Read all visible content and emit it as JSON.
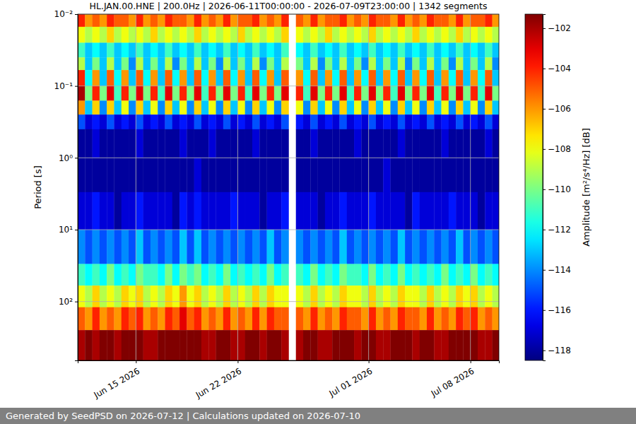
{
  "chart_data": {
    "type": "heatmap",
    "title": "HL.JAN.00.HNE | 200.0Hz | 2026-06-11T00:00:00 - 2026-07-09T23:00:00 | 1342 segments",
    "y_label": "Period [s]",
    "footer": "Generated by SeedPSD on 2026-07-12 | Calculations updated on 2026-07-10",
    "log": "y",
    "grid": true,
    "xlim": [
      "2026-06-11T00:00",
      "2026-07-09T23:00"
    ],
    "xticks": [
      {
        "value": "2026-06-15T00:00",
        "label": "Jun 15 2026"
      },
      {
        "value": "2026-06-22T00:00",
        "label": "Jun 22 2026"
      },
      {
        "value": "2026-07-01T00:00",
        "label": "Jul 01 2026"
      },
      {
        "value": "2026-07-08T00:00",
        "label": "Jul 08 2026"
      }
    ],
    "ylim": [
      0.01,
      660
    ],
    "yticks": [
      {
        "value": 0.01,
        "label": "10⁻²"
      },
      {
        "value": 0.1,
        "label": "10⁻¹"
      },
      {
        "value": 1,
        "label": "10⁰"
      },
      {
        "value": 10,
        "label": "10¹"
      },
      {
        "value": 100,
        "label": "10²"
      }
    ],
    "x": [
      "2026-06-11T00:00",
      "2026-06-11T12:00",
      "2026-06-12T00:00",
      "2026-06-12T12:00",
      "2026-06-13T00:00",
      "2026-06-13T12:00",
      "2026-06-14T00:00",
      "2026-06-14T12:00",
      "2026-06-15T00:00",
      "2026-06-15T12:00",
      "2026-06-16T00:00",
      "2026-06-16T12:00",
      "2026-06-17T00:00",
      "2026-06-17T12:00",
      "2026-06-18T00:00",
      "2026-06-18T12:00",
      "2026-06-19T00:00",
      "2026-06-19T12:00",
      "2026-06-20T00:00",
      "2026-06-20T12:00",
      "2026-06-21T00:00",
      "2026-06-21T12:00",
      "2026-06-22T00:00",
      "2026-06-22T12:00",
      "2026-06-23T00:00",
      "2026-06-23T12:00",
      "2026-06-24T00:00",
      "2026-06-24T12:00",
      "2026-06-25T00:00",
      "2026-06-25T12:00",
      "2026-06-26T00:00",
      "2026-06-26T12:00",
      "2026-06-27T00:00",
      "2026-06-27T12:00",
      "2026-06-28T00:00",
      "2026-06-28T12:00",
      "2026-06-29T00:00",
      "2026-06-29T12:00",
      "2026-06-30T00:00",
      "2026-06-30T12:00",
      "2026-07-01T00:00",
      "2026-07-01T12:00",
      "2026-07-02T00:00",
      "2026-07-02T12:00",
      "2026-07-03T00:00",
      "2026-07-03T12:00",
      "2026-07-04T00:00",
      "2026-07-04T12:00",
      "2026-07-05T00:00",
      "2026-07-05T12:00",
      "2026-07-06T00:00",
      "2026-07-06T12:00",
      "2026-07-07T00:00",
      "2026-07-07T12:00",
      "2026-07-08T00:00",
      "2026-07-08T12:00",
      "2026-07-09T00:00",
      "2026-07-09T12:00"
    ],
    "y": [
      0.01,
      0.015,
      0.025,
      0.04,
      0.06,
      0.1,
      0.16,
      0.25,
      0.4,
      1,
      3,
      10,
      30,
      60,
      120,
      250,
      660
    ],
    "z": [
      [
        -104,
        -106,
        -105,
        -106,
        -104,
        -105,
        -105,
        -106,
        -104,
        -106,
        -105,
        -106,
        -104,
        -105,
        -105,
        -106,
        -104,
        -106,
        -105,
        -106,
        -104,
        -106,
        -105,
        -105,
        -104,
        -106,
        -105,
        -106,
        -104,
        null,
        -105,
        -106,
        -104,
        -106,
        -105,
        -105,
        -104,
        -106,
        -105,
        -106,
        -104,
        -105,
        -105,
        -106,
        -104,
        -106,
        -105,
        -106,
        -104,
        -105,
        -105,
        -106,
        -104,
        -106,
        -105,
        -105,
        -104,
        -106
      ],
      [
        -108,
        -109,
        -108,
        -109,
        -107,
        -109,
        -108,
        -109,
        -108,
        -109,
        -107,
        -109,
        -108,
        -109,
        -108,
        -109,
        -107,
        -109,
        -108,
        -109,
        -108,
        -109,
        -107,
        -109,
        -108,
        -109,
        -108,
        -109,
        -107,
        null,
        -108,
        -109,
        -108,
        -109,
        -107,
        -109,
        -108,
        -109,
        -108,
        -109,
        -107,
        -109,
        -108,
        -109,
        -108,
        -109,
        -107,
        -109,
        -108,
        -109,
        -108,
        -109,
        -107,
        -109,
        -108,
        -109,
        -108,
        -109
      ],
      [
        -111,
        -113,
        -112,
        -113,
        -111,
        -113,
        -112,
        -113,
        -111,
        -113,
        -112,
        -113,
        -111,
        -113,
        -112,
        -113,
        -111,
        -113,
        -112,
        -113,
        -111,
        -113,
        -112,
        -113,
        -111,
        -113,
        -112,
        -113,
        -111,
        null,
        -112,
        -113,
        -111,
        -113,
        -112,
        -113,
        -111,
        -113,
        -112,
        -113,
        -111,
        -113,
        -112,
        -113,
        -111,
        -113,
        -112,
        -113,
        -111,
        -113,
        -112,
        -113,
        -111,
        -113,
        -112,
        -113,
        -111,
        -113
      ],
      [
        -109,
        -113,
        -110,
        -113,
        -109,
        -113,
        -110,
        -114,
        -109,
        -113,
        -110,
        -113,
        -109,
        -114,
        -110,
        -113,
        -109,
        -113,
        -110,
        -114,
        -109,
        -113,
        -110,
        -113,
        -109,
        -114,
        -110,
        -113,
        -109,
        null,
        -110,
        -113,
        -109,
        -114,
        -110,
        -113,
        -109,
        -113,
        -110,
        -114,
        -109,
        -113,
        -110,
        -113,
        -109,
        -114,
        -110,
        -113,
        -109,
        -113,
        -110,
        -114,
        -109,
        -113,
        -110,
        -113,
        -109,
        -114
      ],
      [
        -104,
        -112,
        -106,
        -113,
        -105,
        -112,
        -106,
        -113,
        -105,
        -112,
        -106,
        -113,
        -105,
        -112,
        -106,
        -113,
        -105,
        -112,
        -106,
        -113,
        -105,
        -112,
        -106,
        -113,
        -105,
        -112,
        -106,
        -113,
        -105,
        null,
        -106,
        -112,
        -105,
        -113,
        -106,
        -112,
        -105,
        -113,
        -106,
        -112,
        -105,
        -113,
        -106,
        -112,
        -105,
        -113,
        -106,
        -112,
        -105,
        -113,
        -106,
        -112,
        -105,
        -113,
        -106,
        -112,
        -105,
        -113
      ],
      [
        -102,
        -110,
        -104,
        -110,
        -103,
        -111,
        -104,
        -110,
        -103,
        -110,
        -104,
        -111,
        -103,
        -110,
        -104,
        -110,
        -103,
        -111,
        -104,
        -110,
        -103,
        -110,
        -104,
        -111,
        -103,
        -110,
        -104,
        -110,
        -103,
        null,
        -104,
        -111,
        -103,
        -110,
        -104,
        -110,
        -103,
        -111,
        -104,
        -110,
        -103,
        -110,
        -104,
        -111,
        -103,
        -110,
        -104,
        -110,
        -103,
        -111,
        -104,
        -110,
        -103,
        -110,
        -104,
        -111,
        -103,
        -110
      ],
      [
        -106,
        -113,
        -107,
        -114,
        -107,
        -113,
        -108,
        -114,
        -107,
        -113,
        -108,
        -114,
        -107,
        -113,
        -108,
        -114,
        -107,
        -113,
        -108,
        -114,
        -107,
        -113,
        -108,
        -114,
        -107,
        -113,
        -108,
        -114,
        -107,
        null,
        -108,
        -114,
        -107,
        -113,
        -108,
        -114,
        -107,
        -113,
        -108,
        -114,
        -107,
        -113,
        -108,
        -114,
        -107,
        -113,
        -108,
        -114,
        -107,
        -113,
        -108,
        -114,
        -107,
        -113,
        -108,
        -114,
        -107,
        -113
      ],
      [
        -115,
        -117,
        -116,
        -117,
        -115,
        -117,
        -116,
        -117,
        -115,
        -117,
        -116,
        -117,
        -115,
        -117,
        -116,
        -117,
        -115,
        -117,
        -116,
        -117,
        -115,
        -117,
        -116,
        -117,
        -115,
        -117,
        -116,
        -117,
        -115,
        null,
        -116,
        -117,
        -115,
        -117,
        -116,
        -117,
        -115,
        -117,
        -116,
        -117,
        -115,
        -117,
        -116,
        -117,
        -115,
        -117,
        -116,
        -117,
        -115,
        -117,
        -116,
        -117,
        -115,
        -117,
        -116,
        -117,
        -115,
        -117
      ],
      [
        -118,
        -118,
        -117,
        -118,
        -118,
        -118,
        -118,
        -118,
        -117,
        -118,
        -118,
        -118,
        -118,
        -118,
        -117,
        -118,
        -118,
        -118,
        -117,
        -118,
        -118,
        -118,
        -118,
        -118,
        -117,
        -118,
        -118,
        -118,
        -118,
        null,
        -118,
        -118,
        -117,
        -118,
        -118,
        -118,
        -118,
        -118,
        -117,
        -118,
        -118,
        -118,
        -118,
        -118,
        -117,
        -118,
        -118,
        -118,
        -118,
        -118,
        -117,
        -118,
        -118,
        -118,
        -118,
        -118,
        -117,
        -118
      ],
      [
        -118,
        -118,
        -118,
        -118,
        -118,
        -118,
        -118,
        -118,
        -118,
        -118,
        -118,
        -118,
        -118,
        -118,
        -118,
        -118,
        -117,
        -118,
        -118,
        -118,
        -118,
        -118,
        -118,
        -118,
        -118,
        -118,
        -118,
        -118,
        -118,
        null,
        -118,
        -118,
        -118,
        -118,
        -118,
        -118,
        -118,
        -118,
        -118,
        -118,
        -118,
        -118,
        -117,
        -118,
        -118,
        -118,
        -118,
        -118,
        -118,
        -118,
        -118,
        -118,
        -118,
        -118,
        -118,
        -118,
        -118,
        -118
      ],
      [
        -117,
        -117,
        -116,
        -117,
        -117,
        -118,
        -117,
        -117,
        -116,
        -117,
        -117,
        -117,
        -117,
        -118,
        -116,
        -117,
        -116,
        -117,
        -117,
        -117,
        -117,
        -116,
        -117,
        -117,
        -117,
        -118,
        -117,
        -117,
        -116,
        null,
        -117,
        -117,
        -117,
        -118,
        -117,
        -117,
        -116,
        -117,
        -117,
        -117,
        -116,
        -117,
        -117,
        -117,
        -117,
        -118,
        -116,
        -117,
        -117,
        -117,
        -117,
        -116,
        -117,
        -117,
        -117,
        -118,
        -117,
        -117
      ],
      [
        -114,
        -115,
        -114,
        -115,
        -114,
        -115,
        -114,
        -115,
        -113,
        -115,
        -114,
        -115,
        -114,
        -115,
        -113,
        -115,
        -113,
        -115,
        -114,
        -115,
        -114,
        -115,
        -114,
        -115,
        -114,
        -115,
        -113,
        -115,
        -114,
        null,
        -114,
        -115,
        -114,
        -115,
        -114,
        -115,
        -113,
        -115,
        -114,
        -115,
        -114,
        -115,
        -114,
        -115,
        -113,
        -115,
        -114,
        -115,
        -114,
        -115,
        -114,
        -115,
        -113,
        -115,
        -114,
        -115,
        -114,
        -115
      ],
      [
        -111,
        -112,
        -111,
        -112,
        -110,
        -112,
        -111,
        -112,
        -110,
        -111,
        -111,
        -112,
        -110,
        -112,
        -110,
        -111,
        -110,
        -112,
        -111,
        -112,
        -110,
        -112,
        -111,
        -112,
        -111,
        -112,
        -110,
        -112,
        -111,
        null,
        -111,
        -112,
        -110,
        -112,
        -111,
        -112,
        -110,
        -111,
        -111,
        -112,
        -110,
        -112,
        -111,
        -112,
        -110,
        -112,
        -111,
        -112,
        -111,
        -112,
        -110,
        -112,
        -111,
        -112,
        -110,
        -112,
        -111,
        -112
      ],
      [
        -108,
        -109,
        -107,
        -109,
        -108,
        -109,
        -107,
        -108,
        -107,
        -109,
        -108,
        -109,
        -107,
        -108,
        -106,
        -108,
        -107,
        -109,
        -108,
        -109,
        -107,
        -109,
        -108,
        -109,
        -107,
        -109,
        -107,
        -108,
        -108,
        null,
        -108,
        -109,
        -107,
        -109,
        -108,
        -109,
        -107,
        -108,
        -108,
        -109,
        -107,
        -109,
        -108,
        -109,
        -107,
        -108,
        -108,
        -109,
        -107,
        -109,
        -108,
        -109,
        -107,
        -108,
        -107,
        -109,
        -108,
        -109
      ],
      [
        -105,
        -106,
        -104,
        -106,
        -105,
        -106,
        -104,
        -105,
        -104,
        -106,
        -105,
        -106,
        -104,
        -105,
        -103,
        -105,
        -104,
        -106,
        -105,
        -106,
        -104,
        -106,
        -105,
        -106,
        -104,
        -106,
        -104,
        -105,
        -105,
        null,
        -105,
        -106,
        -104,
        -106,
        -105,
        -106,
        -104,
        -105,
        -105,
        -106,
        -104,
        -106,
        -105,
        -106,
        -104,
        -105,
        -105,
        -106,
        -104,
        -106,
        -105,
        -106,
        -104,
        -105,
        -104,
        -106,
        -105,
        -106
      ],
      [
        -102,
        -101,
        -102,
        -101,
        -101,
        -102,
        -101,
        -101,
        -101,
        -102,
        -102,
        -101,
        -101,
        -101,
        -101,
        -101,
        -101,
        -102,
        -102,
        -101,
        -101,
        -102,
        -102,
        -101,
        -101,
        -102,
        -101,
        -101,
        -102,
        null,
        -102,
        -101,
        -101,
        -102,
        -102,
        -101,
        -101,
        -101,
        -102,
        -101,
        -101,
        -102,
        -102,
        -101,
        -101,
        -101,
        -102,
        -101,
        -101,
        -102,
        -102,
        -101,
        -101,
        -101,
        -101,
        -102,
        -102,
        -101
      ]
    ],
    "colorbar": {
      "label": "Amplitude [m²/s⁴/Hz] [dB]",
      "range": [
        -118.5,
        -101.3
      ],
      "ticks": [
        {
          "value": -102,
          "label": "−102"
        },
        {
          "value": -104,
          "label": "−104"
        },
        {
          "value": -106,
          "label": "−106"
        },
        {
          "value": -108,
          "label": "−108"
        },
        {
          "value": -110,
          "label": "−110"
        },
        {
          "value": -112,
          "label": "−112"
        },
        {
          "value": -114,
          "label": "−114"
        },
        {
          "value": -116,
          "label": "−116"
        },
        {
          "value": -118,
          "label": "−118"
        }
      ]
    }
  }
}
